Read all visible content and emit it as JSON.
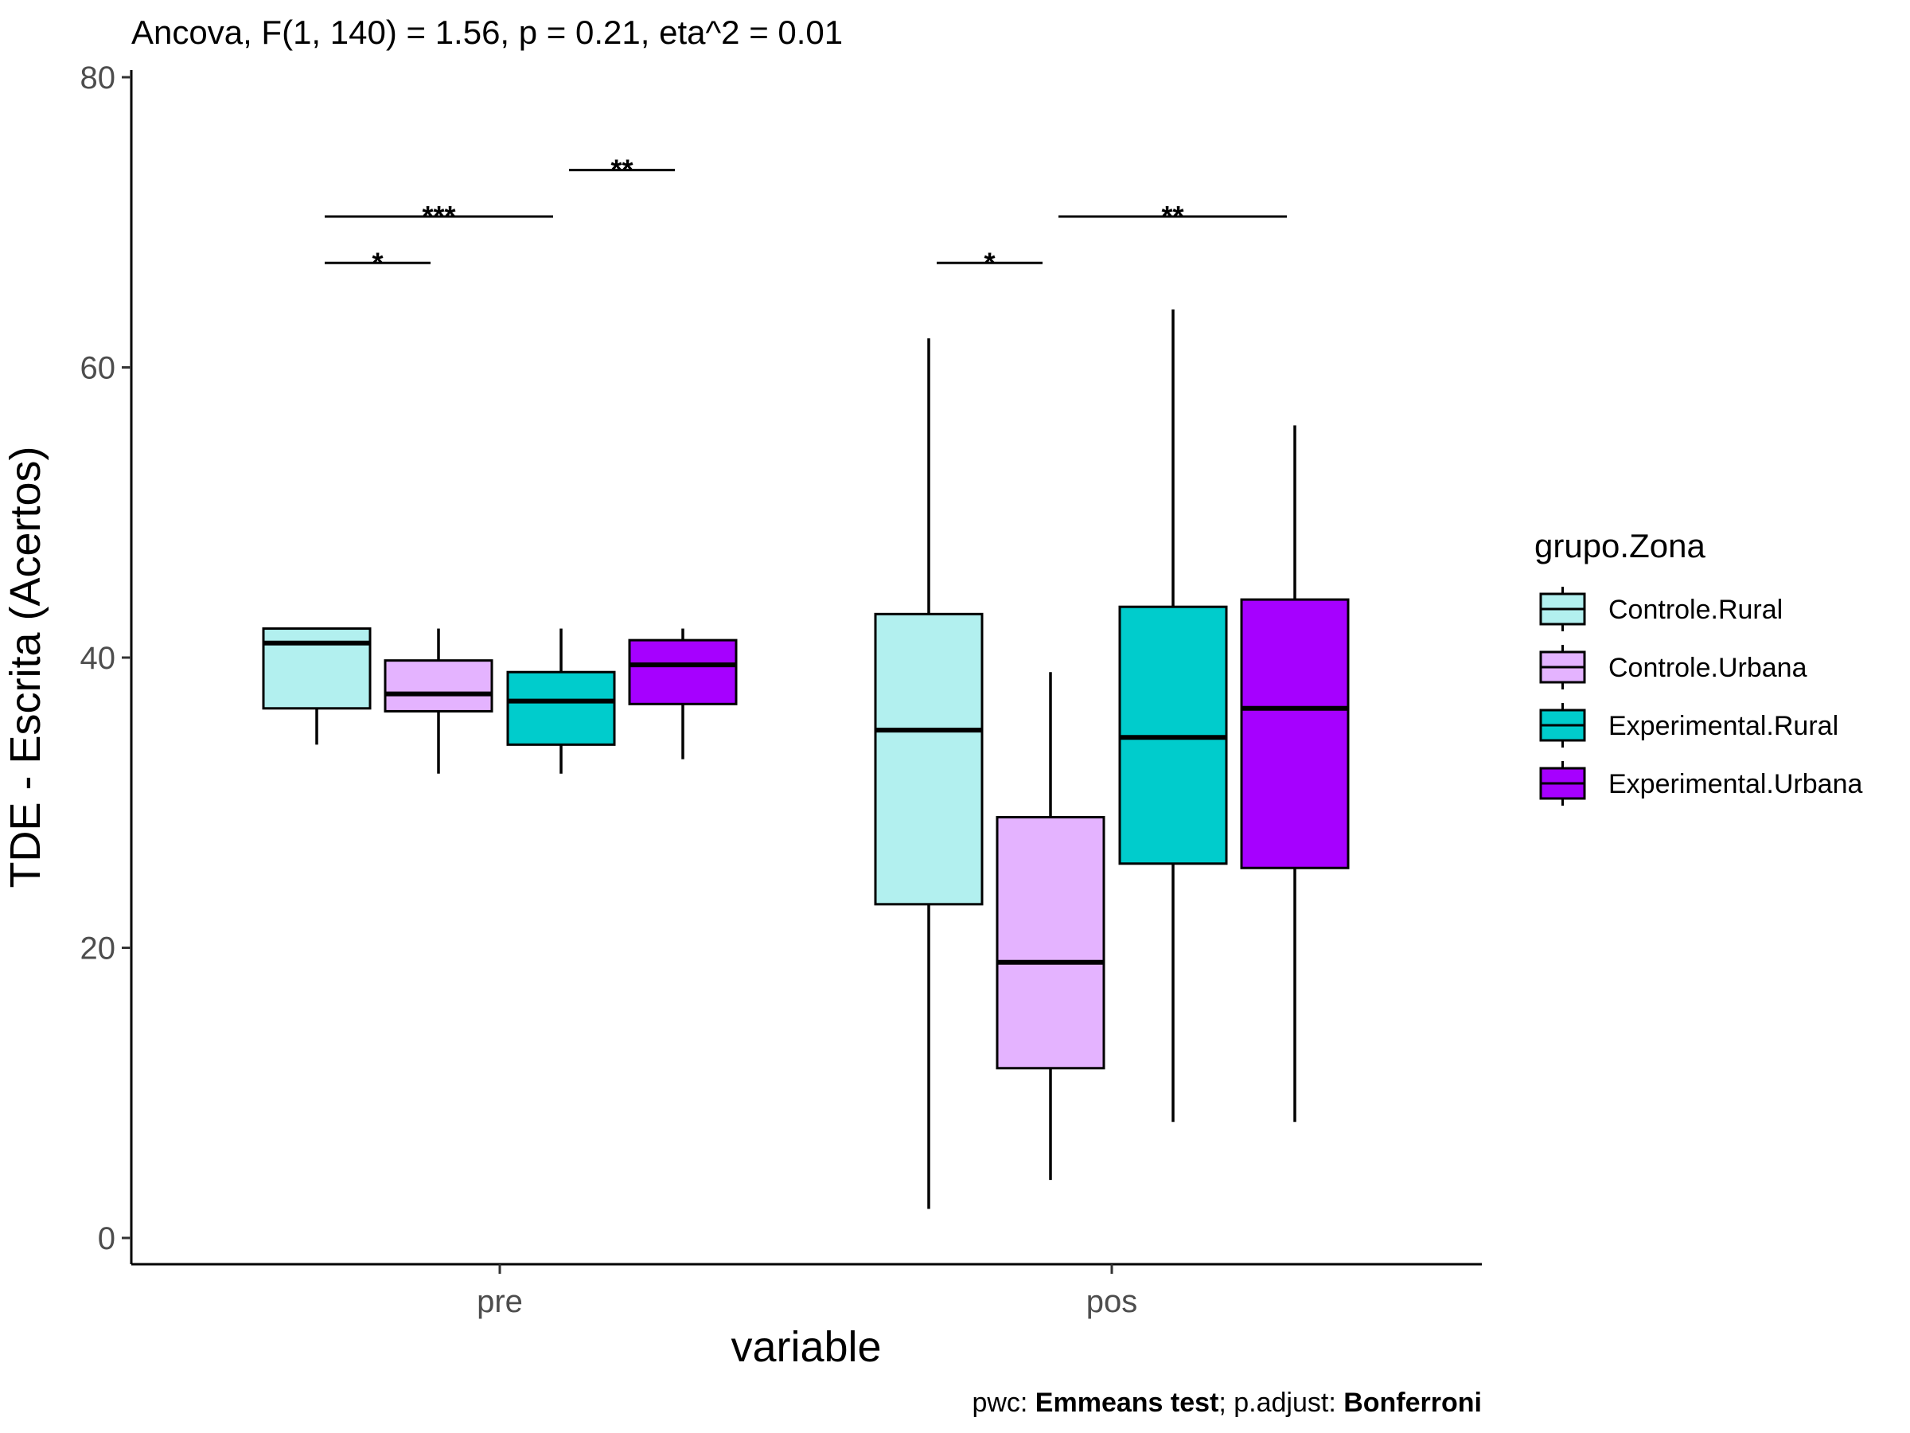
{
  "chart_data": {
    "type": "box",
    "title": "Ancova, F(1, 140) = 1.56, p = 0.21, eta^2 = 0.01",
    "xlabel": "variable",
    "ylabel": "TDE - Escrita (Acertos)",
    "ylim": [
      0,
      80
    ],
    "yticks": [
      0,
      20,
      40,
      60,
      80
    ],
    "categories": [
      "pre",
      "pos"
    ],
    "legend": {
      "title": "grupo.Zona",
      "position": "right",
      "entries": [
        "Controle.Rural",
        "Controle.Urbana",
        "Experimental.Rural",
        "Experimental.Urbana"
      ]
    },
    "series": [
      {
        "name": "Controle.Rural",
        "color": "#b2f0ef",
        "boxes": [
          {
            "min": 34,
            "q1": 36.5,
            "median": 41,
            "q3": 42,
            "max": 42
          },
          {
            "min": 2,
            "q1": 23,
            "median": 35,
            "q3": 43,
            "max": 62
          }
        ]
      },
      {
        "name": "Controle.Urbana",
        "color": "#e4b3ff",
        "boxes": [
          {
            "min": 32,
            "q1": 36.3,
            "median": 37.5,
            "q3": 39.8,
            "max": 42
          },
          {
            "min": 4,
            "q1": 11.7,
            "median": 19,
            "q3": 29,
            "max": 39
          }
        ]
      },
      {
        "name": "Experimental.Rural",
        "color": "#00cccc",
        "boxes": [
          {
            "min": 32,
            "q1": 34,
            "median": 37,
            "q3": 39,
            "max": 42
          },
          {
            "min": 8,
            "q1": 25.8,
            "median": 34.5,
            "q3": 43.5,
            "max": 64
          }
        ]
      },
      {
        "name": "Experimental.Urbana",
        "color": "#a600ff",
        "boxes": [
          {
            "min": 33,
            "q1": 36.8,
            "median": 39.5,
            "q3": 41.2,
            "max": 42
          },
          {
            "min": 8,
            "q1": 25.5,
            "median": 36.5,
            "q3": 44,
            "max": 56
          }
        ]
      }
    ],
    "comparisons": [
      {
        "category": "pre",
        "from": "Controle.Rural",
        "to": "Controle.Urbana",
        "y": 67.2,
        "label": "*"
      },
      {
        "category": "pre",
        "from": "Controle.Rural",
        "to": "Experimental.Rural",
        "y": 70.4,
        "label": "***"
      },
      {
        "category": "pre",
        "from": "Experimental.Rural",
        "to": "Experimental.Urbana",
        "y": 73.6,
        "label": "**"
      },
      {
        "category": "pos",
        "from": "Controle.Rural",
        "to": "Controle.Urbana",
        "y": 67.2,
        "label": "*"
      },
      {
        "category": "pos",
        "from": "Controle.Urbana",
        "to": "Experimental.Urbana",
        "y": 70.4,
        "label": "**"
      }
    ],
    "caption": {
      "prefix": "pwc: ",
      "test": "Emmeans test",
      "mid": "; p.adjust: ",
      "adjust": "Bonferroni"
    }
  }
}
